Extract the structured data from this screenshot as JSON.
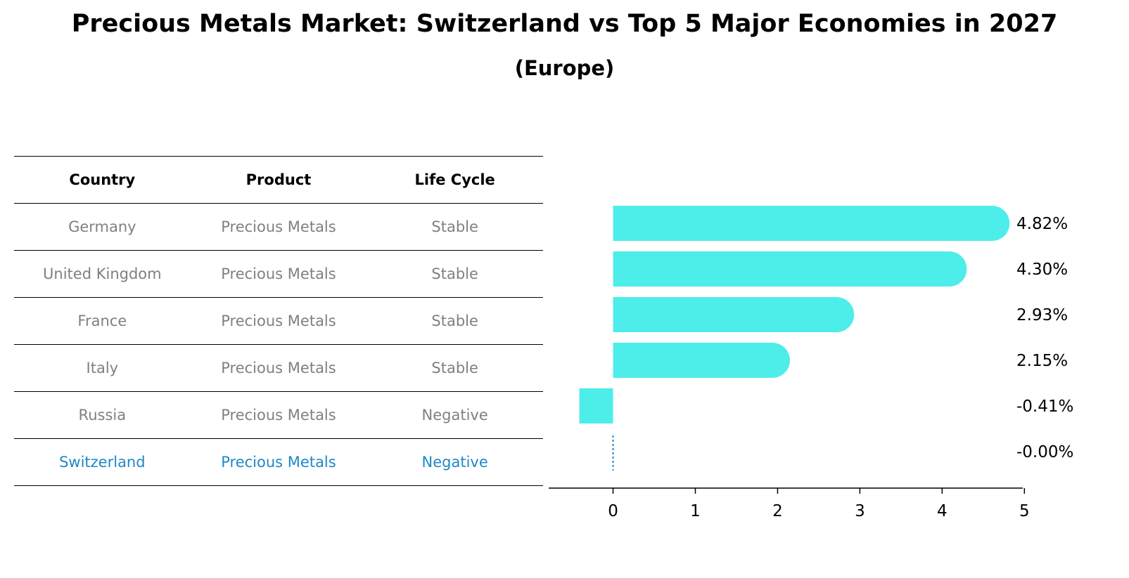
{
  "title": "Precious Metals Market: Switzerland vs Top 5 Major Economies in 2027",
  "subtitle": "(Europe)",
  "table": {
    "headers": [
      "Country",
      "Product",
      "Life Cycle"
    ],
    "rows": [
      {
        "country": "Germany",
        "product": "Precious Metals",
        "life_cycle": "Stable"
      },
      {
        "country": "United Kingdom",
        "product": "Precious Metals",
        "life_cycle": "Stable"
      },
      {
        "country": "France",
        "product": "Precious Metals",
        "life_cycle": "Stable"
      },
      {
        "country": "Italy",
        "product": "Precious Metals",
        "life_cycle": "Stable"
      },
      {
        "country": "Russia",
        "product": "Precious Metals",
        "life_cycle": "Negative"
      },
      {
        "country": "Switzerland",
        "product": "Precious Metals",
        "life_cycle": "Negative"
      }
    ]
  },
  "colors": {
    "bar": "#4dedea",
    "highlight": "#1f88c7",
    "muted_text": "#808080"
  },
  "chart_data": {
    "type": "bar",
    "orientation": "horizontal",
    "categories": [
      "Germany",
      "United Kingdom",
      "France",
      "Italy",
      "Russia",
      "Switzerland"
    ],
    "values": [
      4.82,
      4.3,
      2.93,
      2.15,
      -0.41,
      -0.0
    ],
    "value_labels": [
      "4.82%",
      "4.30%",
      "2.93%",
      "2.15%",
      "-0.41%",
      "-0.00%"
    ],
    "xticks": [
      0,
      1,
      2,
      3,
      4,
      5
    ],
    "xlim": [
      -0.68,
      5.1
    ],
    "grid": false
  }
}
